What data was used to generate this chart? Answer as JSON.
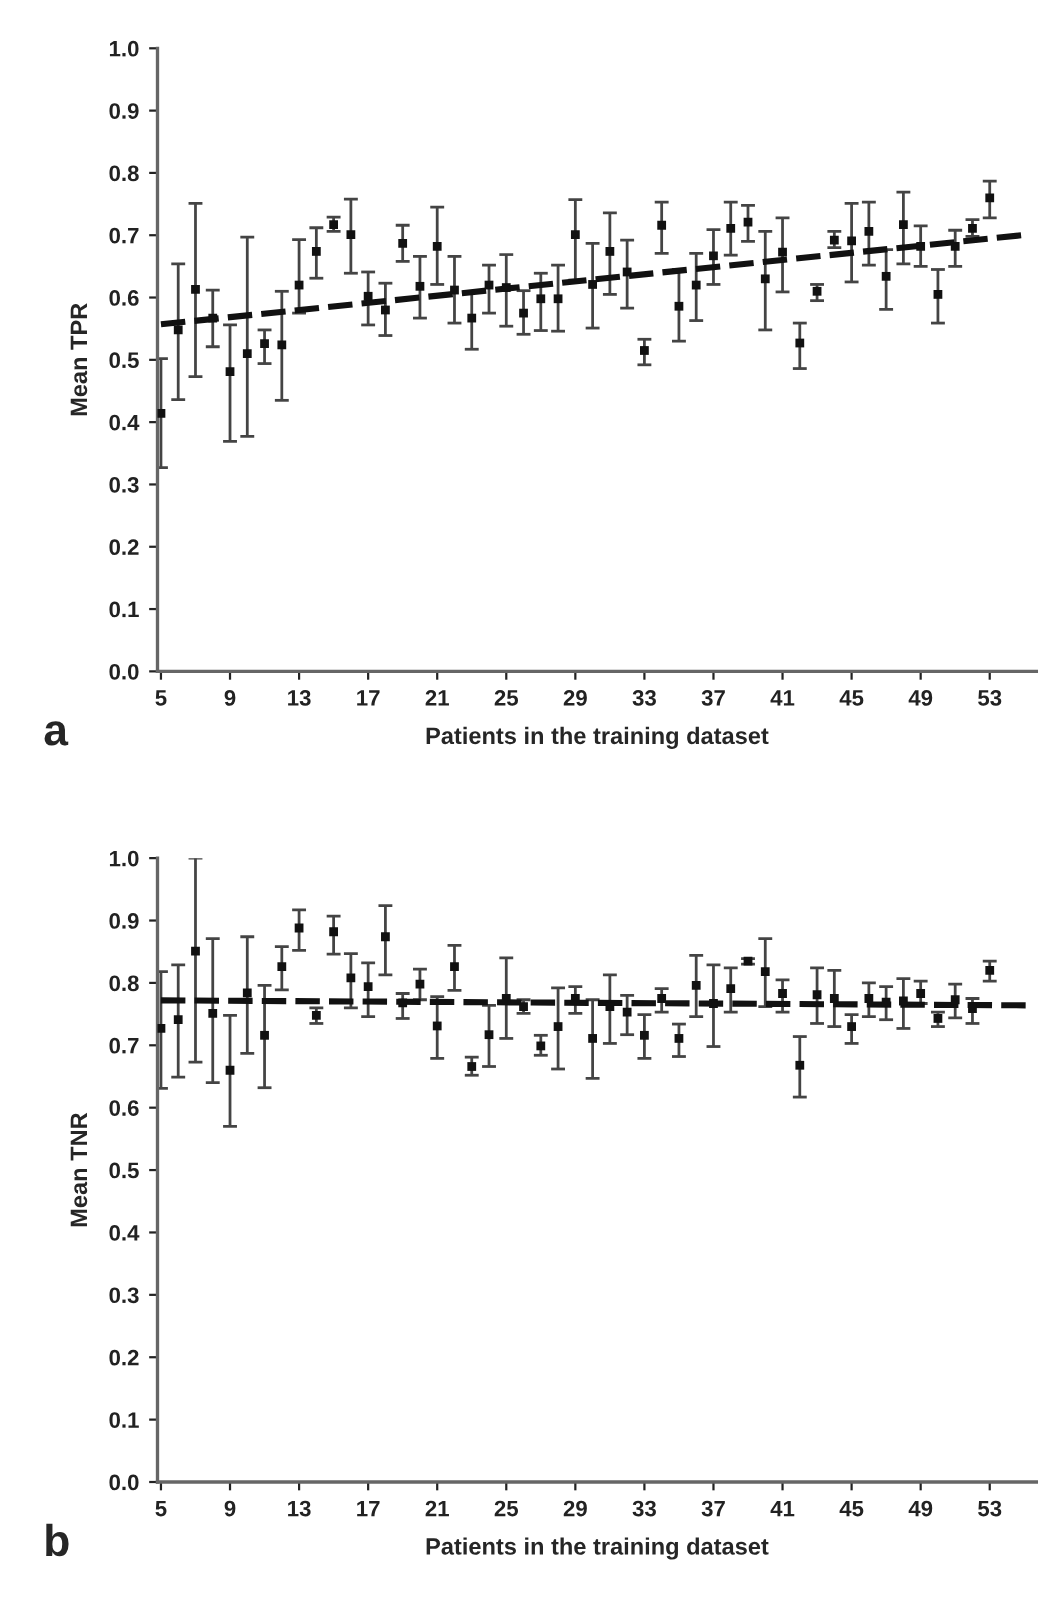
{
  "chart_data": [
    {
      "type": "scatter",
      "ylabel": "Mean TPR",
      "xlabel": "Patients in the training dataset",
      "annotations": [
        "a"
      ],
      "xlim": [
        4.8,
        55.7
      ],
      "xticks": [
        5,
        9,
        13,
        17,
        21,
        25,
        29,
        33,
        37,
        41,
        45,
        49,
        53
      ],
      "ylim": [
        0,
        1
      ],
      "yticks": [
        {
          "value": 0,
          "label": "0.0"
        },
        {
          "value": 0.1,
          "label": "0.1"
        },
        {
          "value": 0.2,
          "label": "0.2"
        },
        {
          "value": 0.3,
          "label": "0.3"
        },
        {
          "value": 0.4,
          "label": "0.4"
        },
        {
          "value": 0.5,
          "label": "0.5"
        },
        {
          "value": 0.6,
          "label": "0.6"
        },
        {
          "value": 0.7,
          "label": "0.7"
        },
        {
          "value": 0.8,
          "label": "0.8"
        },
        {
          "value": 0.9,
          "label": "0.9"
        },
        {
          "value": 1,
          "label": "1.0"
        }
      ],
      "grid": false,
      "legend": false,
      "series": [
        {
          "color": "#111111",
          "marker": "square",
          "x": [
            5,
            6,
            7,
            8,
            9,
            10,
            11,
            12,
            13,
            14,
            15,
            16,
            17,
            18,
            19,
            20,
            21,
            22,
            23,
            24,
            25,
            26,
            27,
            28,
            29,
            30,
            31,
            32,
            33,
            34,
            35,
            36,
            37,
            38,
            39,
            40,
            41,
            42,
            43,
            44,
            45,
            46,
            47,
            48,
            49,
            50,
            51,
            52,
            53
          ],
          "values": [
            0.414,
            0.548,
            0.613,
            0.567,
            0.481,
            0.51,
            0.526,
            0.524,
            0.62,
            0.674,
            0.717,
            0.701,
            0.602,
            0.58,
            0.687,
            0.618,
            0.682,
            0.612,
            0.567,
            0.62,
            0.616,
            0.575,
            0.598,
            0.598,
            0.701,
            0.621,
            0.674,
            0.641,
            0.515,
            0.716,
            0.586,
            0.62,
            0.667,
            0.711,
            0.721,
            0.63,
            0.673,
            0.527,
            0.61,
            0.692,
            0.691,
            0.706,
            0.634,
            0.717,
            0.682,
            0.605,
            0.682,
            0.711,
            0.76
          ],
          "errors": [
            [
              0.327,
              0.502
            ],
            [
              0.436,
              0.654
            ],
            [
              0.473,
              0.751
            ],
            [
              0.521,
              0.612
            ],
            [
              0.369,
              0.556
            ],
            [
              0.377,
              0.697
            ],
            [
              0.494,
              0.548
            ],
            [
              0.435,
              0.61
            ],
            [
              0.575,
              0.693
            ],
            [
              0.631,
              0.712
            ],
            [
              0.706,
              0.729
            ],
            [
              0.639,
              0.758
            ],
            [
              0.556,
              0.641
            ],
            [
              0.539,
              0.623
            ],
            [
              0.658,
              0.716
            ],
            [
              0.567,
              0.666
            ],
            [
              0.621,
              0.745
            ],
            [
              0.559,
              0.666
            ],
            [
              0.517,
              0.609
            ],
            [
              0.575,
              0.652
            ],
            [
              0.554,
              0.669
            ],
            [
              0.541,
              0.611
            ],
            [
              0.547,
              0.639
            ],
            [
              0.546,
              0.652
            ],
            [
              0.628,
              0.757
            ],
            [
              0.551,
              0.687
            ],
            [
              0.605,
              0.736
            ],
            [
              0.583,
              0.692
            ],
            [
              0.492,
              0.533
            ],
            [
              0.671,
              0.753
            ],
            [
              0.53,
              0.645
            ],
            [
              0.563,
              0.671
            ],
            [
              0.621,
              0.709
            ],
            [
              0.668,
              0.753
            ],
            [
              0.69,
              0.748
            ],
            [
              0.548,
              0.706
            ],
            [
              0.609,
              0.728
            ],
            [
              0.486,
              0.559
            ],
            [
              0.595,
              0.621
            ],
            [
              0.68,
              0.706
            ],
            [
              0.625,
              0.751
            ],
            [
              0.652,
              0.753
            ],
            [
              0.581,
              0.677
            ],
            [
              0.654,
              0.769
            ],
            [
              0.65,
              0.715
            ],
            [
              0.559,
              0.645
            ],
            [
              0.65,
              0.708
            ],
            [
              0.698,
              0.725
            ],
            [
              0.728,
              0.787
            ]
          ]
        },
        {
          "type": "line",
          "color": "#111111",
          "line_style": "dashed",
          "marker": "none",
          "x": [
            5,
            55.2
          ],
          "values": [
            0.557,
            0.701
          ]
        }
      ]
    },
    {
      "type": "scatter",
      "ylabel": "Mean TNR",
      "xlabel": "Patients in the training dataset",
      "annotations": [
        "b"
      ],
      "xlim": [
        4.8,
        55.7
      ],
      "xticks": [
        5,
        9,
        13,
        17,
        21,
        25,
        29,
        33,
        37,
        41,
        45,
        49,
        53
      ],
      "ylim": [
        0,
        1
      ],
      "yticks": [
        {
          "value": 0,
          "label": "0.0"
        },
        {
          "value": 0.1,
          "label": "0.1"
        },
        {
          "value": 0.2,
          "label": "0.2"
        },
        {
          "value": 0.3,
          "label": "0.3"
        },
        {
          "value": 0.4,
          "label": "0.4"
        },
        {
          "value": 0.5,
          "label": "0.5"
        },
        {
          "value": 0.6,
          "label": "0.6"
        },
        {
          "value": 0.7,
          "label": "0.7"
        },
        {
          "value": 0.8,
          "label": "0.8"
        },
        {
          "value": 0.9,
          "label": "0.9"
        },
        {
          "value": 1,
          "label": "1.0"
        }
      ],
      "grid": false,
      "legend": false,
      "series": [
        {
          "color": "#111111",
          "marker": "square",
          "x": [
            5,
            6,
            7,
            8,
            9,
            10,
            11,
            12,
            13,
            14,
            15,
            16,
            17,
            18,
            19,
            20,
            21,
            22,
            23,
            24,
            25,
            26,
            27,
            28,
            29,
            30,
            31,
            32,
            33,
            34,
            35,
            36,
            37,
            38,
            39,
            40,
            41,
            42,
            43,
            44,
            45,
            46,
            47,
            48,
            49,
            50,
            51,
            52,
            53
          ],
          "values": [
            0.727,
            0.741,
            0.851,
            0.751,
            0.66,
            0.784,
            0.716,
            0.826,
            0.888,
            0.748,
            0.882,
            0.808,
            0.794,
            0.874,
            0.768,
            0.798,
            0.731,
            0.826,
            0.666,
            0.717,
            0.775,
            0.762,
            0.699,
            0.73,
            0.775,
            0.711,
            0.762,
            0.753,
            0.716,
            0.775,
            0.711,
            0.796,
            0.767,
            0.791,
            0.835,
            0.818,
            0.783,
            0.668,
            0.781,
            0.775,
            0.73,
            0.775,
            0.769,
            0.771,
            0.783,
            0.743,
            0.773,
            0.759,
            0.82
          ],
          "errors": [
            [
              0.631,
              0.818
            ],
            [
              0.649,
              0.829
            ],
            [
              0.673,
              1.0
            ],
            [
              0.64,
              0.871
            ],
            [
              0.57,
              0.748
            ],
            [
              0.687,
              0.874
            ],
            [
              0.632,
              0.796
            ],
            [
              0.789,
              0.858
            ],
            [
              0.852,
              0.917
            ],
            [
              0.735,
              0.76
            ],
            [
              0.846,
              0.907
            ],
            [
              0.76,
              0.847
            ],
            [
              0.746,
              0.832
            ],
            [
              0.813,
              0.924
            ],
            [
              0.743,
              0.783
            ],
            [
              0.773,
              0.822
            ],
            [
              0.679,
              0.778
            ],
            [
              0.788,
              0.86
            ],
            [
              0.652,
              0.681
            ],
            [
              0.666,
              0.764
            ],
            [
              0.711,
              0.84
            ],
            [
              0.751,
              0.773
            ],
            [
              0.684,
              0.716
            ],
            [
              0.662,
              0.792
            ],
            [
              0.751,
              0.794
            ],
            [
              0.647,
              0.773
            ],
            [
              0.703,
              0.813
            ],
            [
              0.717,
              0.78
            ],
            [
              0.679,
              0.749
            ],
            [
              0.753,
              0.791
            ],
            [
              0.682,
              0.734
            ],
            [
              0.746,
              0.844
            ],
            [
              0.698,
              0.829
            ],
            [
              0.753,
              0.824
            ],
            [
              0.83,
              0.839
            ],
            [
              0.762,
              0.871
            ],
            [
              0.753,
              0.805
            ],
            [
              0.617,
              0.714
            ],
            [
              0.735,
              0.824
            ],
            [
              0.73,
              0.82
            ],
            [
              0.703,
              0.749
            ],
            [
              0.746,
              0.8
            ],
            [
              0.741,
              0.794
            ],
            [
              0.727,
              0.807
            ],
            [
              0.767,
              0.803
            ],
            [
              0.73,
              0.753
            ],
            [
              0.744,
              0.798
            ],
            [
              0.735,
              0.775
            ],
            [
              0.803,
              0.835
            ]
          ]
        },
        {
          "type": "line",
          "color": "#111111",
          "line_style": "dashed",
          "marker": "none",
          "x": [
            5,
            55.2
          ],
          "values": [
            0.772,
            0.764
          ]
        }
      ]
    }
  ]
}
